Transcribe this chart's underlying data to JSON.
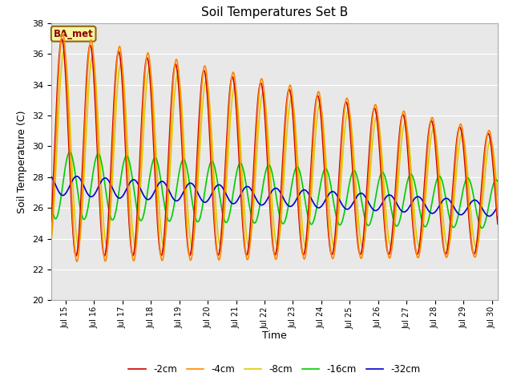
{
  "title": "Soil Temperatures Set B",
  "xlabel": "Time",
  "ylabel": "Soil Temperature (C)",
  "ylim": [
    20,
    38
  ],
  "xlim_days": [
    14.5,
    30.2
  ],
  "annotation": "BA_met",
  "background_color": "#e8e8e8",
  "fig_background": "#ffffff",
  "grid_color": "#ffffff",
  "series": {
    "-2cm": {
      "color": "#cc0000",
      "lw": 1.2
    },
    "-4cm": {
      "color": "#ff8800",
      "lw": 1.2
    },
    "-8cm": {
      "color": "#ddcc00",
      "lw": 1.2
    },
    "-16cm": {
      "color": "#00cc00",
      "lw": 1.2
    },
    "-32cm": {
      "color": "#0000cc",
      "lw": 1.2
    }
  },
  "legend_order": [
    "-2cm",
    "-4cm",
    "-8cm",
    "-16cm",
    "-32cm"
  ],
  "xtick_labels": [
    "Jul 15",
    "Jul 16",
    "Jul 17",
    "Jul 18",
    "Jul 19",
    "Jul 20",
    "Jul 21",
    "Jul 22",
    "Jul 23",
    "Jul 24",
    "Jul 25",
    "Jul 26",
    "Jul 27",
    "Jul 28",
    "Jul 29",
    "Jul 30"
  ],
  "xtick_positions": [
    15,
    16,
    17,
    18,
    19,
    20,
    21,
    22,
    23,
    24,
    25,
    26,
    27,
    28,
    29,
    30
  ],
  "ytick_positions": [
    20,
    22,
    24,
    26,
    28,
    30,
    32,
    34,
    36,
    38
  ]
}
